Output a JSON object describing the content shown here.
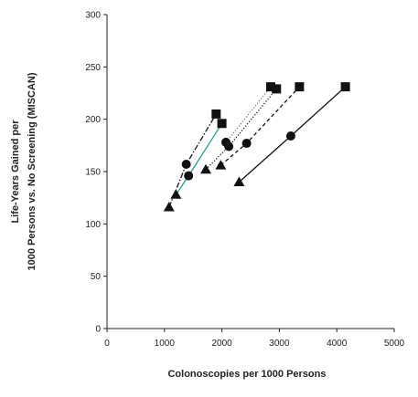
{
  "chart_data": {
    "type": "line",
    "title": "",
    "xlabel": "Colonoscopies per 1000 Persons",
    "ylabel": [
      "Life-Years Gained per",
      "1000 Persons vs. No Screening (MISCAN)"
    ],
    "xlim": [
      0,
      5000
    ],
    "ylim": [
      0,
      300
    ],
    "xticks": [
      0,
      1000,
      2000,
      3000,
      4000,
      5000
    ],
    "yticks": [
      0,
      50,
      100,
      150,
      200,
      250,
      300
    ],
    "xtick_labels": [
      "0",
      "1000",
      "2000",
      "3000",
      "4000",
      "5000"
    ],
    "ytick_labels": [
      "0",
      "50",
      "100",
      "150",
      "200",
      "250",
      "300"
    ],
    "grid": false,
    "legend": "none",
    "colors": {
      "axis": "#222222",
      "black": "#111111",
      "teal": "#2a9d8f"
    },
    "series": [
      {
        "style": "solid",
        "color": "black",
        "points": [
          {
            "x": 2300,
            "y": 140,
            "marker": "triangle"
          },
          {
            "x": 3200,
            "y": 184,
            "marker": "circle"
          },
          {
            "x": 4150,
            "y": 231,
            "marker": "square"
          }
        ]
      },
      {
        "style": "dashed",
        "color": "black",
        "points": [
          {
            "x": 1980,
            "y": 156,
            "marker": "triangle"
          },
          {
            "x": 2430,
            "y": 177,
            "marker": "circle"
          },
          {
            "x": 3350,
            "y": 231,
            "marker": "square"
          }
        ]
      },
      {
        "style": "dotted",
        "color": "black",
        "points": [
          {
            "x": 1720,
            "y": 152,
            "marker": "triangle"
          },
          {
            "x": 2120,
            "y": 174,
            "marker": "circle"
          },
          {
            "x": 2950,
            "y": 229,
            "marker": "square"
          }
        ]
      },
      {
        "style": "dotted",
        "color": "teal",
        "points": [
          {
            "x": 2070,
            "y": 178,
            "marker": "circle"
          },
          {
            "x": 2850,
            "y": 231,
            "marker": "square"
          }
        ]
      },
      {
        "style": "solid",
        "color": "teal",
        "points": [
          {
            "x": 1200,
            "y": 128,
            "marker": "triangle"
          },
          {
            "x": 1420,
            "y": 146,
            "marker": "circle"
          },
          {
            "x": 2000,
            "y": 196,
            "marker": "square"
          }
        ]
      },
      {
        "style": "dashdot",
        "color": "black",
        "points": [
          {
            "x": 1080,
            "y": 116,
            "marker": "triangle"
          },
          {
            "x": 1380,
            "y": 157,
            "marker": "circle"
          },
          {
            "x": 1900,
            "y": 205,
            "marker": "square"
          }
        ]
      }
    ]
  }
}
